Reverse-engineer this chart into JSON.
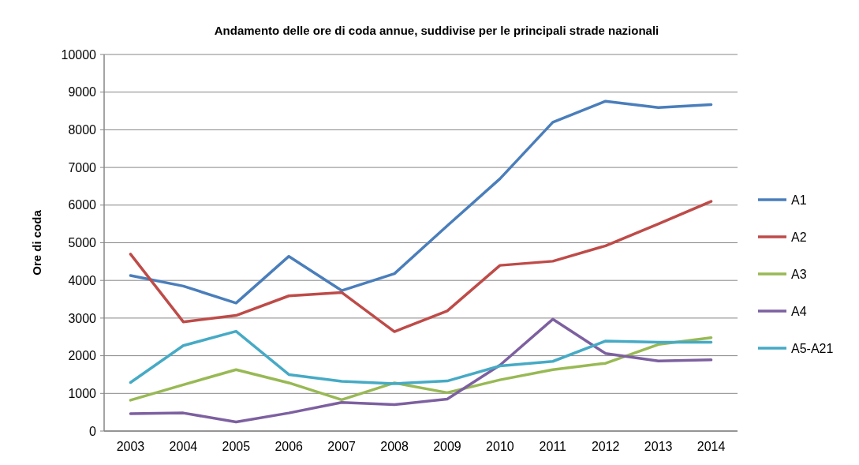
{
  "chart_data": {
    "type": "line",
    "title": "Andamento delle ore di coda annue, suddivise per le principali strade nazionali",
    "ylabel": "Ore di coda",
    "categories": [
      "2003",
      "2004",
      "2005",
      "2006",
      "2007",
      "2008",
      "2009",
      "2010",
      "2011",
      "2012",
      "2013",
      "2014"
    ],
    "series": [
      {
        "name": "A1",
        "color": "#4a7ebb",
        "values": [
          4130,
          3850,
          3400,
          4640,
          3730,
          4180,
          5450,
          6700,
          8200,
          8760,
          8590,
          8670
        ]
      },
      {
        "name": "A2",
        "color": "#be4b48",
        "values": [
          4700,
          2900,
          3070,
          3590,
          3680,
          2640,
          3190,
          4400,
          4510,
          4920,
          5500,
          6100
        ]
      },
      {
        "name": "A3",
        "color": "#98b954",
        "values": [
          820,
          1230,
          1630,
          1280,
          830,
          1280,
          1020,
          1360,
          1630,
          1800,
          2300,
          2480
        ]
      },
      {
        "name": "A4",
        "color": "#7d60a0",
        "values": [
          460,
          480,
          240,
          480,
          760,
          700,
          850,
          1750,
          2970,
          2060,
          1860,
          1890
        ]
      },
      {
        "name": "A5-A21",
        "color": "#46aac5",
        "values": [
          1290,
          2270,
          2650,
          1500,
          1320,
          1260,
          1330,
          1730,
          1850,
          2390,
          2360,
          2360
        ]
      }
    ],
    "ylim": [
      0,
      10000
    ],
    "yticks": [
      0,
      1000,
      2000,
      3000,
      4000,
      5000,
      6000,
      7000,
      8000,
      9000,
      10000
    ],
    "grid": "y",
    "legend": "right",
    "marker": "none",
    "line_style": "solid"
  }
}
